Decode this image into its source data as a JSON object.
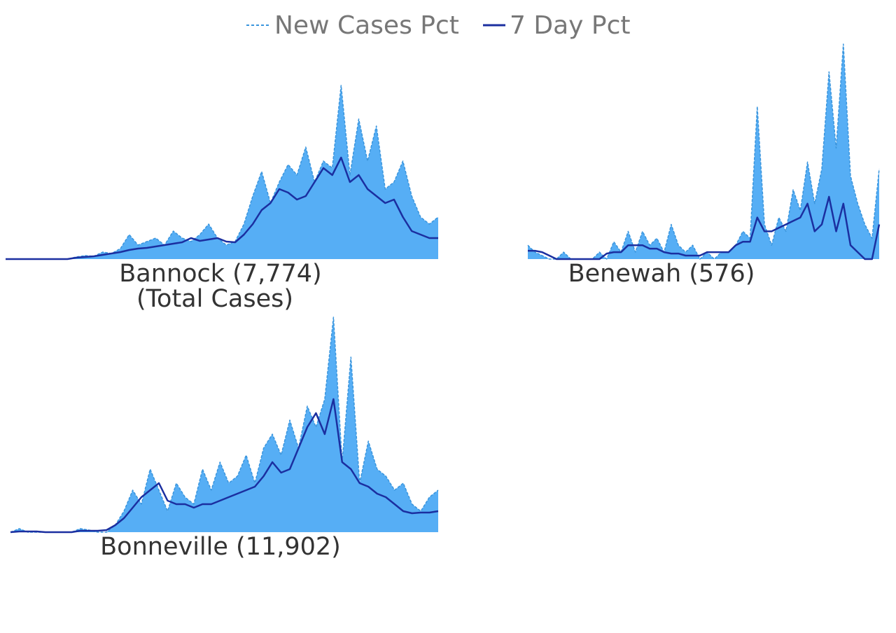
{
  "chart_data": [
    {
      "type": "line",
      "title": "Bannock (7,774)",
      "subtitle": "(Total Cases)",
      "series": [
        {
          "name": "New Cases Pct",
          "color": "#3a95dd",
          "fill": "#56aef5",
          "dashed": true,
          "values": [
            0,
            0,
            0,
            0,
            0,
            0,
            0,
            0,
            0.3,
            0.5,
            0.4,
            1,
            0.8,
            1.5,
            3.5,
            2,
            2.5,
            3,
            2,
            4,
            3,
            2.5,
            3.5,
            5,
            3,
            2,
            2.5,
            5,
            9,
            12.5,
            8,
            11,
            13.5,
            12,
            16,
            11,
            14,
            13,
            24.8,
            12,
            20,
            14,
            19,
            10,
            11,
            14,
            9,
            6,
            5,
            6
          ]
        },
        {
          "name": "7 Day Pct",
          "color": "#1b2fa0",
          "values": [
            0,
            0,
            0,
            0,
            0,
            0,
            0,
            0,
            0.2,
            0.3,
            0.4,
            0.6,
            0.8,
            1,
            1.3,
            1.5,
            1.6,
            1.8,
            2,
            2.2,
            2.4,
            3,
            2.6,
            2.8,
            3,
            2.5,
            2.4,
            3.5,
            5,
            7,
            8,
            10,
            9.5,
            8.5,
            9,
            11,
            13,
            12,
            14.5,
            11,
            12,
            10,
            9,
            8,
            8.5,
            6,
            4,
            3.5,
            3,
            3
          ]
        }
      ]
    },
    {
      "type": "line",
      "title": "Benewah (576)",
      "series": [
        {
          "color": "#3a95dd",
          "fill": "#56aef5",
          "dashed": true,
          "values": [
            2,
            1,
            0.5,
            0,
            0,
            1,
            0,
            0,
            0,
            0,
            1,
            0,
            2.5,
            1,
            4,
            1,
            4,
            2,
            3,
            1,
            5,
            2,
            1,
            2,
            0,
            1,
            0,
            1,
            1,
            2,
            4,
            3,
            22,
            5,
            2,
            6,
            4,
            10,
            7,
            14,
            8,
            13,
            27,
            16,
            31,
            12,
            8,
            5,
            3,
            13
          ]
        },
        {
          "color": "#1b2fa0",
          "values": [
            1.2,
            1.2,
            1,
            0.5,
            0,
            0,
            0,
            0,
            0,
            0,
            0,
            0.8,
            1,
            1,
            2,
            2,
            2,
            1.5,
            1.5,
            1,
            0.8,
            0.8,
            0.5,
            0.5,
            0.5,
            1,
            1,
            1,
            1,
            2,
            2.5,
            2.5,
            6,
            4,
            4,
            4.5,
            5,
            5.5,
            6,
            8,
            4,
            5,
            9,
            4,
            8,
            2,
            1,
            0,
            0,
            5
          ]
        }
      ]
    },
    {
      "type": "line",
      "title": "Bonneville (11,902)",
      "series": [
        {
          "color": "#3a95dd",
          "fill": "#56aef5",
          "dashed": true,
          "values": [
            0,
            0.5,
            0,
            0,
            0,
            0,
            0,
            0,
            0.5,
            0.3,
            0,
            0,
            1,
            3,
            6,
            4,
            9,
            6,
            3,
            7,
            5,
            4,
            9,
            6,
            10,
            7,
            8,
            11,
            7,
            12,
            14,
            11,
            16,
            12,
            18,
            15,
            19,
            30.7,
            10,
            25,
            7,
            13,
            9,
            8,
            6,
            7,
            4,
            3,
            5,
            6
          ]
        },
        {
          "color": "#1b2fa0",
          "values": [
            0,
            0.1,
            0.1,
            0.1,
            0,
            0,
            0,
            0,
            0.2,
            0.2,
            0.2,
            0.3,
            1,
            2,
            3.5,
            5,
            6,
            7,
            4.5,
            4,
            4,
            3.5,
            4,
            4,
            4.5,
            5,
            5.5,
            6,
            6.5,
            8,
            10,
            8.5,
            9,
            12,
            15,
            17,
            14,
            19,
            10,
            9,
            7,
            6.5,
            5.5,
            5,
            4,
            3,
            2.7,
            2.8,
            2.8,
            3
          ]
        }
      ]
    }
  ]
}
